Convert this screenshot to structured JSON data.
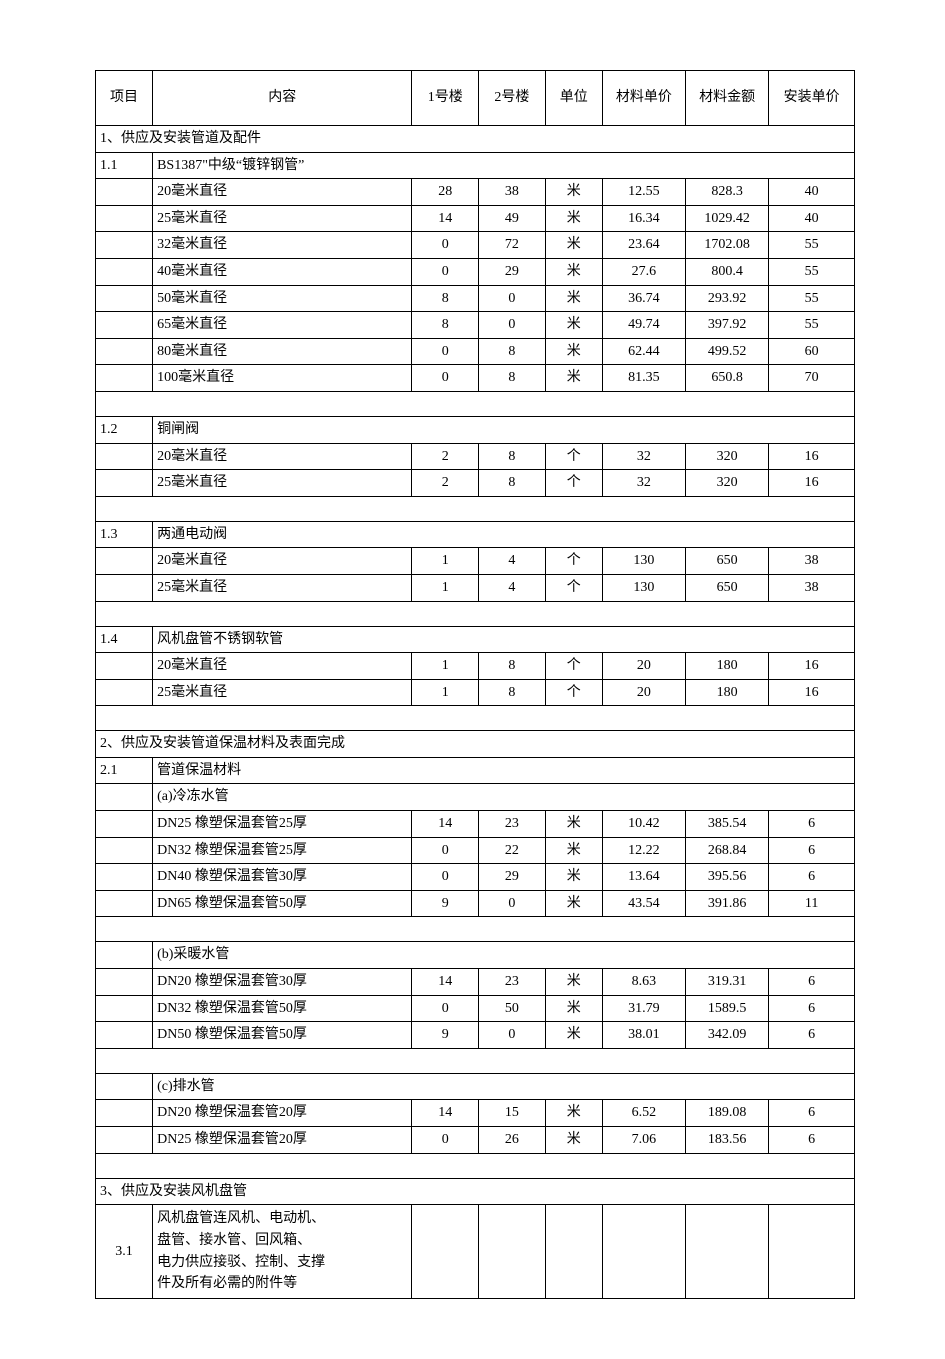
{
  "headers": {
    "item": "项目",
    "desc": "内容",
    "b1": "1号楼",
    "b2": "2号楼",
    "unit": "单位",
    "uprice": "材料单价",
    "amount": "材料金额",
    "inst": "安装单价"
  },
  "section1": {
    "title": "1、供应及安装管道及配件",
    "s1_1": {
      "no": "1.1",
      "title": "BS1387\"中级“镀锌钢管”",
      "rows": [
        {
          "desc": "20毫米直径",
          "b1": "28",
          "b2": "38",
          "unit": "米",
          "up": "12.55",
          "amt": "828.3",
          "inst": "40"
        },
        {
          "desc": "25毫米直径",
          "b1": "14",
          "b2": "49",
          "unit": "米",
          "up": "16.34",
          "amt": "1029.42",
          "inst": "40"
        },
        {
          "desc": "32毫米直径",
          "b1": "0",
          "b2": "72",
          "unit": "米",
          "up": "23.64",
          "amt": "1702.08",
          "inst": "55"
        },
        {
          "desc": "40毫米直径",
          "b1": "0",
          "b2": "29",
          "unit": "米",
          "up": "27.6",
          "amt": "800.4",
          "inst": "55"
        },
        {
          "desc": "50毫米直径",
          "b1": "8",
          "b2": "0",
          "unit": "米",
          "up": "36.74",
          "amt": "293.92",
          "inst": "55"
        },
        {
          "desc": "65毫米直径",
          "b1": "8",
          "b2": "0",
          "unit": "米",
          "up": "49.74",
          "amt": "397.92",
          "inst": "55"
        },
        {
          "desc": "80毫米直径",
          "b1": "0",
          "b2": "8",
          "unit": "米",
          "up": "62.44",
          "amt": "499.52",
          "inst": "60"
        },
        {
          "desc": "100毫米直径",
          "b1": "0",
          "b2": "8",
          "unit": "米",
          "up": "81.35",
          "amt": "650.8",
          "inst": "70"
        }
      ]
    },
    "s1_2": {
      "no": "1.2",
      "title": "铜闸阀",
      "rows": [
        {
          "desc": "20毫米直径",
          "b1": "2",
          "b2": "8",
          "unit": "个",
          "up": "32",
          "amt": "320",
          "inst": "16"
        },
        {
          "desc": "25毫米直径",
          "b1": "2",
          "b2": "8",
          "unit": "个",
          "up": "32",
          "amt": "320",
          "inst": "16"
        }
      ]
    },
    "s1_3": {
      "no": "1.3",
      "title": "两通电动阀",
      "rows": [
        {
          "desc": "20毫米直径",
          "b1": "1",
          "b2": "4",
          "unit": "个",
          "up": "130",
          "amt": "650",
          "inst": "38"
        },
        {
          "desc": "25毫米直径",
          "b1": "1",
          "b2": "4",
          "unit": "个",
          "up": "130",
          "amt": "650",
          "inst": "38"
        }
      ]
    },
    "s1_4": {
      "no": "1.4",
      "title": "风机盘管不锈钢软管",
      "rows": [
        {
          "desc": "20毫米直径",
          "b1": "1",
          "b2": "8",
          "unit": "个",
          "up": "20",
          "amt": "180",
          "inst": "16"
        },
        {
          "desc": "25毫米直径",
          "b1": "1",
          "b2": "8",
          "unit": "个",
          "up": "20",
          "amt": "180",
          "inst": "16"
        }
      ]
    }
  },
  "section2": {
    "title": "2、供应及安装管道保温材料及表面完成",
    "s2_1": {
      "no": "2.1",
      "title": "管道保温材料",
      "groupA": {
        "label": "(a)冷冻水管",
        "rows": [
          {
            "desc": "DN25    橡塑保温套管25厚",
            "b1": "14",
            "b2": "23",
            "unit": "米",
            "up": "10.42",
            "amt": "385.54",
            "inst": "6"
          },
          {
            "desc": "DN32    橡塑保温套管25厚",
            "b1": "0",
            "b2": "22",
            "unit": "米",
            "up": "12.22",
            "amt": "268.84",
            "inst": "6"
          },
          {
            "desc": "DN40    橡塑保温套管30厚",
            "b1": "0",
            "b2": "29",
            "unit": "米",
            "up": "13.64",
            "amt": "395.56",
            "inst": "6"
          },
          {
            "desc": "DN65    橡塑保温套管50厚",
            "b1": "9",
            "b2": "0",
            "unit": "米",
            "up": "43.54",
            "amt": "391.86",
            "inst": "11"
          }
        ]
      },
      "groupB": {
        "label": "(b)采暖水管",
        "rows": [
          {
            "desc": "DN20    橡塑保温套管30厚",
            "b1": "14",
            "b2": "23",
            "unit": "米",
            "up": "8.63",
            "amt": "319.31",
            "inst": "6"
          },
          {
            "desc": "DN32    橡塑保温套管50厚",
            "b1": "0",
            "b2": "50",
            "unit": "米",
            "up": "31.79",
            "amt": "1589.5",
            "inst": "6"
          },
          {
            "desc": "DN50    橡塑保温套管50厚",
            "b1": "9",
            "b2": "0",
            "unit": "米",
            "up": "38.01",
            "amt": "342.09",
            "inst": "6"
          }
        ]
      },
      "groupC": {
        "label": "(c)排水管",
        "rows": [
          {
            "desc": "DN20    橡塑保温套管20厚",
            "b1": "14",
            "b2": "15",
            "unit": "米",
            "up": "6.52",
            "amt": "189.08",
            "inst": "6"
          },
          {
            "desc": "DN25    橡塑保温套管20厚",
            "b1": "0",
            "b2": "26",
            "unit": "米",
            "up": "7.06",
            "amt": "183.56",
            "inst": "6"
          }
        ]
      }
    }
  },
  "section3": {
    "title": "3、供应及安装风机盘管",
    "s3_1": {
      "no": "3.1",
      "desc_lines": [
        "风机盘管连风机、电动机、",
        "盘管、接水管、回风箱、",
        "电力供应接驳、控制、支撑",
        "件及所有必需的附件等"
      ]
    }
  }
}
